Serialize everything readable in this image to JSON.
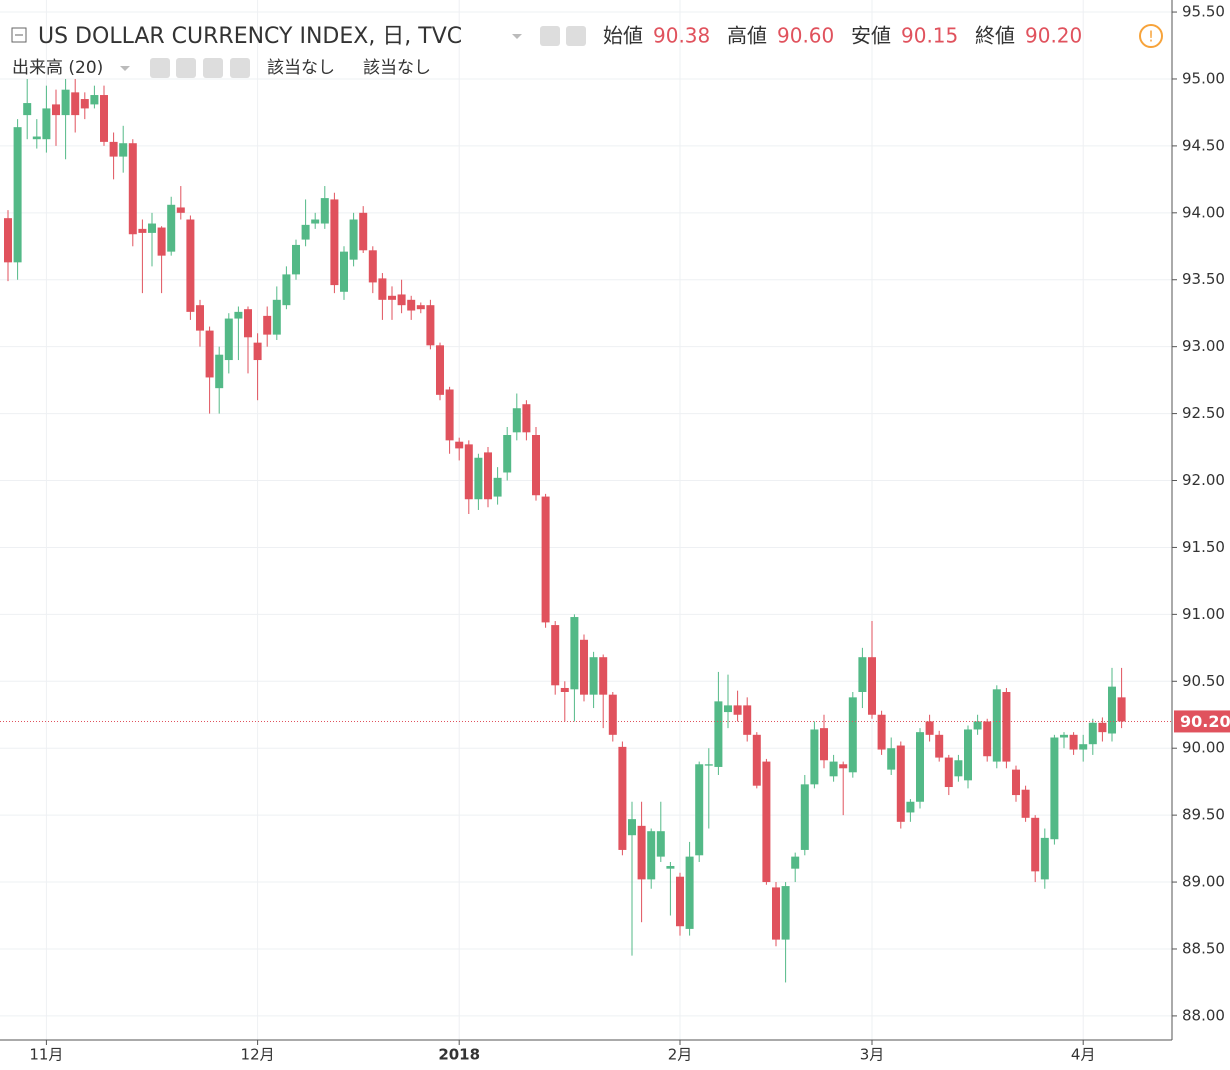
{
  "chart_data": {
    "type": "candlestick",
    "title": "US DOLLAR CURRENCY INDEX, 日, TVC",
    "ohlc_legend": [
      {
        "label": "始値",
        "value": "90.38"
      },
      {
        "label": "高値",
        "value": "90.60"
      },
      {
        "label": "安値",
        "value": "90.15"
      },
      {
        "label": "終値",
        "value": "90.20"
      }
    ],
    "volume_legend": {
      "label": "出来高 (20)",
      "values": [
        "該当なし",
        "該当なし"
      ]
    },
    "last_price": {
      "value": 90.2,
      "label": "90.20"
    },
    "up_color": "#53b987",
    "down_color": "#e0525d",
    "grid": true,
    "ylim": [
      87.82,
      95.59
    ],
    "yticks": [
      {
        "value": 88,
        "label": "88.00"
      },
      {
        "value": 88.5,
        "label": "88.50"
      },
      {
        "value": 89,
        "label": "89.00"
      },
      {
        "value": 89.5,
        "label": "89.50"
      },
      {
        "value": 90,
        "label": "90.00"
      },
      {
        "value": 90.5,
        "label": "90.50"
      },
      {
        "value": 91,
        "label": "91.00"
      },
      {
        "value": 91.5,
        "label": "91.50"
      },
      {
        "value": 92,
        "label": "92.00"
      },
      {
        "value": 92.5,
        "label": "92.50"
      },
      {
        "value": 93,
        "label": "93.00"
      },
      {
        "value": 93.5,
        "label": "93.50"
      },
      {
        "value": 94,
        "label": "94.00"
      },
      {
        "value": 94.5,
        "label": "94.50"
      },
      {
        "value": 95,
        "label": "95.00"
      },
      {
        "value": 95.5,
        "label": "95.50"
      }
    ],
    "categories": [
      null,
      null,
      null,
      null,
      "11月",
      null,
      null,
      null,
      null,
      null,
      null,
      null,
      null,
      null,
      null,
      null,
      null,
      null,
      null,
      null,
      null,
      null,
      null,
      null,
      null,
      null,
      "12月",
      null,
      null,
      null,
      null,
      null,
      null,
      null,
      null,
      null,
      null,
      null,
      null,
      null,
      null,
      null,
      null,
      null,
      null,
      null,
      null,
      "2018",
      null,
      null,
      null,
      null,
      null,
      null,
      null,
      null,
      null,
      null,
      null,
      null,
      null,
      null,
      null,
      null,
      null,
      null,
      null,
      null,
      null,
      null,
      "2月",
      null,
      null,
      null,
      null,
      null,
      null,
      null,
      null,
      null,
      null,
      null,
      null,
      null,
      null,
      null,
      null,
      null,
      null,
      null,
      "3月",
      null,
      null,
      null,
      null,
      null,
      null,
      null,
      null,
      null,
      null,
      null,
      null,
      null,
      null,
      null,
      null,
      null,
      null,
      null,
      null,
      null,
      "4月",
      null,
      null,
      null,
      null
    ],
    "open": [
      93.96,
      93.63,
      94.73,
      94.55,
      94.55,
      94.81,
      94.73,
      94.9,
      94.85,
      94.81,
      94.88,
      94.53,
      94.42,
      94.52,
      93.88,
      93.85,
      93.89,
      93.71,
      94.04,
      93.95,
      93.31,
      93.12,
      92.69,
      92.9,
      93.21,
      93.28,
      93.03,
      93.23,
      93.09,
      93.31,
      93.54,
      93.8,
      93.92,
      93.92,
      94.1,
      93.41,
      93.65,
      94.0,
      93.72,
      93.51,
      93.38,
      93.39,
      93.35,
      93.31,
      93.31,
      93.01,
      92.68,
      92.29,
      92.27,
      91.86,
      92.21,
      91.88,
      92.06,
      92.36,
      92.57,
      92.34,
      91.88,
      90.92,
      90.45,
      90.44,
      90.81,
      90.4,
      90.68,
      90.4,
      90.01,
      89.35,
      89.42,
      89.02,
      89.19,
      89.1,
      89.04,
      88.65,
      89.2,
      89.87,
      89.86,
      90.27,
      90.32,
      90.32,
      90.1,
      89.9,
      88.96,
      88.57,
      89.1,
      89.24,
      89.73,
      90.15,
      89.79,
      89.88,
      89.82,
      90.42,
      90.68,
      90.25,
      89.84,
      90.02,
      89.52,
      89.6,
      90.2,
      90.1,
      89.93,
      89.79,
      89.76,
      90.14,
      90.2,
      89.9,
      90.42,
      89.84,
      89.69,
      89.48,
      89.02,
      89.32,
      90.08,
      90.1,
      89.99,
      90.03,
      90.19,
      90.11,
      90.38
    ],
    "high": [
      94.02,
      94.7,
      95.0,
      94.7,
      94.95,
      94.92,
      95.0,
      95.0,
      94.9,
      94.95,
      94.95,
      94.6,
      94.65,
      94.55,
      93.95,
      94.0,
      93.9,
      94.12,
      94.2,
      93.98,
      93.35,
      93.15,
      93.0,
      93.25,
      93.3,
      93.3,
      93.1,
      93.3,
      93.45,
      93.6,
      93.8,
      94.1,
      94.0,
      94.2,
      94.15,
      93.75,
      94.0,
      94.05,
      93.75,
      93.55,
      93.45,
      93.5,
      93.38,
      93.33,
      93.35,
      93.03,
      92.7,
      92.32,
      92.3,
      92.2,
      92.25,
      92.1,
      92.4,
      92.65,
      92.6,
      92.4,
      91.9,
      90.95,
      90.5,
      91.0,
      90.85,
      90.72,
      90.7,
      90.42,
      90.05,
      89.6,
      89.6,
      89.4,
      89.6,
      89.15,
      89.07,
      89.3,
      89.9,
      90.0,
      90.57,
      90.55,
      90.43,
      90.38,
      90.12,
      89.92,
      89.0,
      89.0,
      89.22,
      89.8,
      90.2,
      90.25,
      89.95,
      89.9,
      90.42,
      90.75,
      90.95,
      90.28,
      90.08,
      90.05,
      89.62,
      90.15,
      90.25,
      90.13,
      89.95,
      89.95,
      90.17,
      90.25,
      90.22,
      90.47,
      90.45,
      89.87,
      89.72,
      89.5,
      89.4,
      90.1,
      90.12,
      90.12,
      90.1,
      90.22,
      90.23,
      90.6,
      90.6
    ],
    "low": [
      93.49,
      93.5,
      94.55,
      94.48,
      94.45,
      94.5,
      94.4,
      94.6,
      94.7,
      94.78,
      94.5,
      94.25,
      94.3,
      93.75,
      93.4,
      93.6,
      93.4,
      93.68,
      93.95,
      93.2,
      93.0,
      92.5,
      92.5,
      92.8,
      92.9,
      92.8,
      92.6,
      93.0,
      93.05,
      93.28,
      93.5,
      93.75,
      93.88,
      93.88,
      93.4,
      93.35,
      93.6,
      93.7,
      93.4,
      93.2,
      93.2,
      93.25,
      93.2,
      93.25,
      92.98,
      92.6,
      92.2,
      92.15,
      91.75,
      91.78,
      91.8,
      91.82,
      92.0,
      92.3,
      92.3,
      91.85,
      90.9,
      90.4,
      90.2,
      90.2,
      90.35,
      90.3,
      90.15,
      90.05,
      89.2,
      88.45,
      88.7,
      88.95,
      89.15,
      88.75,
      88.6,
      88.6,
      89.15,
      89.4,
      89.8,
      90.15,
      90.2,
      90.05,
      89.7,
      88.98,
      88.52,
      88.25,
      89.0,
      89.2,
      89.7,
      89.85,
      89.75,
      89.5,
      89.78,
      90.3,
      90.22,
      89.95,
      89.8,
      89.4,
      89.45,
      89.55,
      90.05,
      89.9,
      89.65,
      89.75,
      89.7,
      90.1,
      89.9,
      89.85,
      89.85,
      89.6,
      89.45,
      89.0,
      88.95,
      89.28,
      90.0,
      89.95,
      89.9,
      89.95,
      90.05,
      90.05,
      90.15
    ],
    "close": [
      93.63,
      94.64,
      94.82,
      94.57,
      94.78,
      94.73,
      94.92,
      94.73,
      94.78,
      94.88,
      94.53,
      94.42,
      94.52,
      93.84,
      93.85,
      93.92,
      93.68,
      94.06,
      94.0,
      93.26,
      93.12,
      92.77,
      92.94,
      93.21,
      93.26,
      93.07,
      92.9,
      93.09,
      93.35,
      93.54,
      93.76,
      93.91,
      93.95,
      94.11,
      93.46,
      93.71,
      93.95,
      93.72,
      93.48,
      93.35,
      93.35,
      93.31,
      93.27,
      93.28,
      93.01,
      92.64,
      92.3,
      92.24,
      91.86,
      92.17,
      91.86,
      92.02,
      92.34,
      92.54,
      92.36,
      91.89,
      90.94,
      90.47,
      90.42,
      90.98,
      90.4,
      90.68,
      90.4,
      90.1,
      89.24,
      89.47,
      89.02,
      89.38,
      89.38,
      89.12,
      88.67,
      89.19,
      89.88,
      89.88,
      90.35,
      90.32,
      90.25,
      90.1,
      89.72,
      89.0,
      88.57,
      88.97,
      89.19,
      89.73,
      90.14,
      89.91,
      89.9,
      89.85,
      90.38,
      90.68,
      90.25,
      89.99,
      90.0,
      89.45,
      89.6,
      90.12,
      90.1,
      89.93,
      89.71,
      89.91,
      90.14,
      90.2,
      89.94,
      90.44,
      89.9,
      89.65,
      89.48,
      89.08,
      89.33,
      90.08,
      90.1,
      89.99,
      90.03,
      90.19,
      90.12,
      90.46,
      90.2
    ]
  }
}
